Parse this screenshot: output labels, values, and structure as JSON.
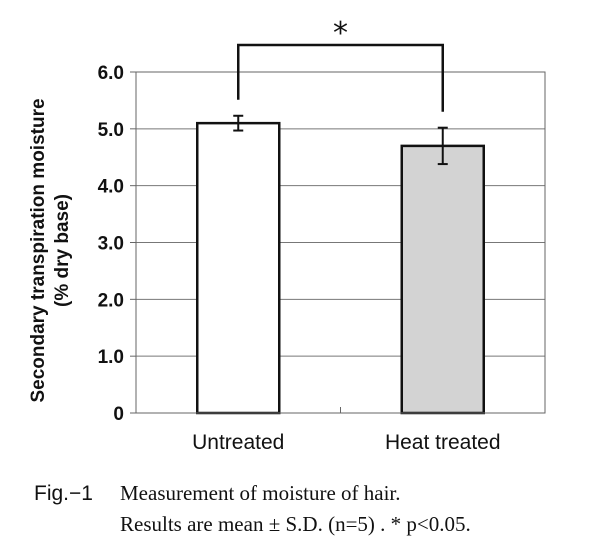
{
  "chart_data": {
    "type": "bar",
    "categories": [
      "Untreated",
      "Heat treated"
    ],
    "values": [
      5.1,
      4.7
    ],
    "errors": [
      0.13,
      0.32
    ],
    "bar_colors": [
      "#ffffff",
      "#d3d3d3"
    ],
    "bar_edge_color": "#111111",
    "title": "",
    "xlabel": "",
    "ylabel_lines": [
      "Secondary transpiration moisture",
      "(% dry base)"
    ],
    "ylim": [
      0,
      6.0
    ],
    "yticks": [
      "0",
      "1.0",
      "2.0",
      "3.0",
      "4.0",
      "5.0",
      "6.0"
    ],
    "grid": true,
    "significance": {
      "between": [
        0,
        1
      ],
      "label": "*"
    }
  },
  "caption": {
    "fig_label": "Fig.−1",
    "line1": "Measurement of moisture of hair.",
    "line2": "Results are mean ± S.D. (n=5) . * p<0.05."
  }
}
